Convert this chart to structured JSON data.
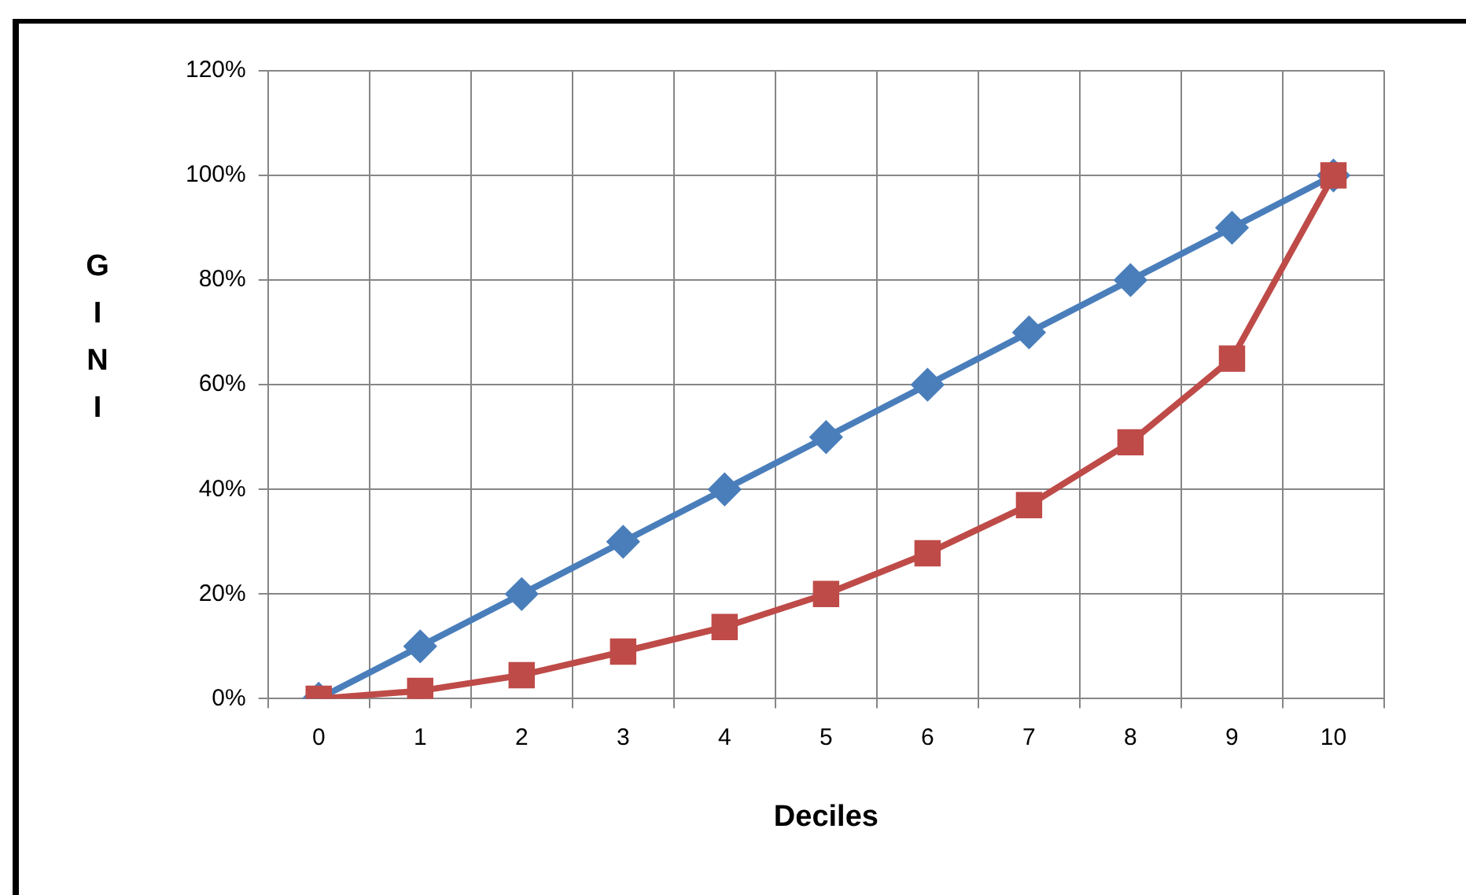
{
  "chart_data": {
    "type": "line",
    "xlabel": "Deciles",
    "ylabel": "GINI",
    "categories": [
      "0",
      "1",
      "2",
      "3",
      "4",
      "5",
      "6",
      "7",
      "8",
      "9",
      "10"
    ],
    "series": [
      {
        "color": "#4a7ebb",
        "marker": "diamond",
        "values": [
          0,
          10,
          20,
          30,
          40,
          50,
          60,
          70,
          80,
          90,
          100
        ]
      },
      {
        "color": "#be4b48",
        "marker": "square",
        "values": [
          0,
          1.5,
          4.5,
          9,
          13.7,
          20,
          27.8,
          37,
          49,
          65,
          100
        ]
      }
    ],
    "ylim": [
      0,
      120
    ],
    "yticks": [
      {
        "value": 0,
        "label": "0%"
      },
      {
        "value": 20,
        "label": "20%"
      },
      {
        "value": 40,
        "label": "40%"
      },
      {
        "value": 60,
        "label": "60%"
      },
      {
        "value": 80,
        "label": "80%"
      },
      {
        "value": 100,
        "label": "100%"
      },
      {
        "value": 120,
        "label": "120%"
      }
    ],
    "grid": true,
    "legend": false
  }
}
